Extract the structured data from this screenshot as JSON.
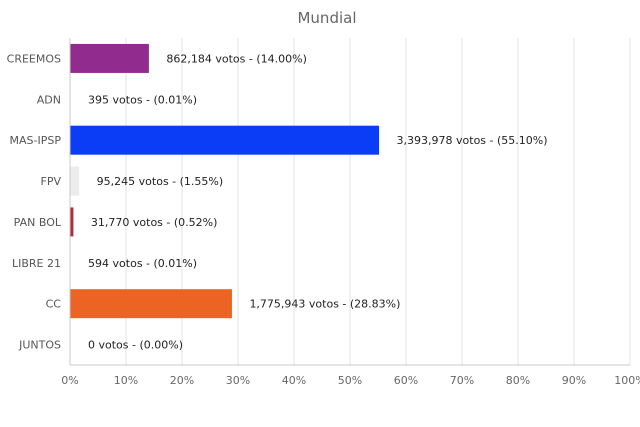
{
  "chart_data": {
    "type": "bar",
    "orientation": "horizontal",
    "title": "Mundial",
    "xlabel": "",
    "ylabel": "",
    "xlim": [
      0,
      100
    ],
    "grid": true,
    "legend": "none",
    "x_ticks": [
      "0%",
      "10%",
      "20%",
      "30%",
      "40%",
      "50%",
      "60%",
      "70%",
      "80%",
      "90%",
      "100%"
    ],
    "categories": [
      "CREEMOS",
      "ADN",
      "MAS-IPSP",
      "FPV",
      "PAN BOL",
      "LIBRE 21",
      "CC",
      "JUNTOS"
    ],
    "values": [
      14.0,
      0.01,
      55.1,
      1.55,
      0.52,
      0.01,
      28.83,
      0.0
    ],
    "data_labels": [
      "862,184 votos - (14.00%)",
      "395 votos - (0.01%)",
      "3,393,978 votos - (55.10%)",
      "95,245 votos - (1.55%)",
      "31,770 votos - (0.52%)",
      "594 votos - (0.01%)",
      "1,775,943 votos - (28.83%)",
      "0 votos - (0.00%)"
    ],
    "colors": [
      "#922b8e",
      "#ffffff",
      "#0a3df5",
      "#ececec",
      "#b02a3a",
      "#ffffff",
      "#ec6423",
      "#ffffff"
    ]
  }
}
